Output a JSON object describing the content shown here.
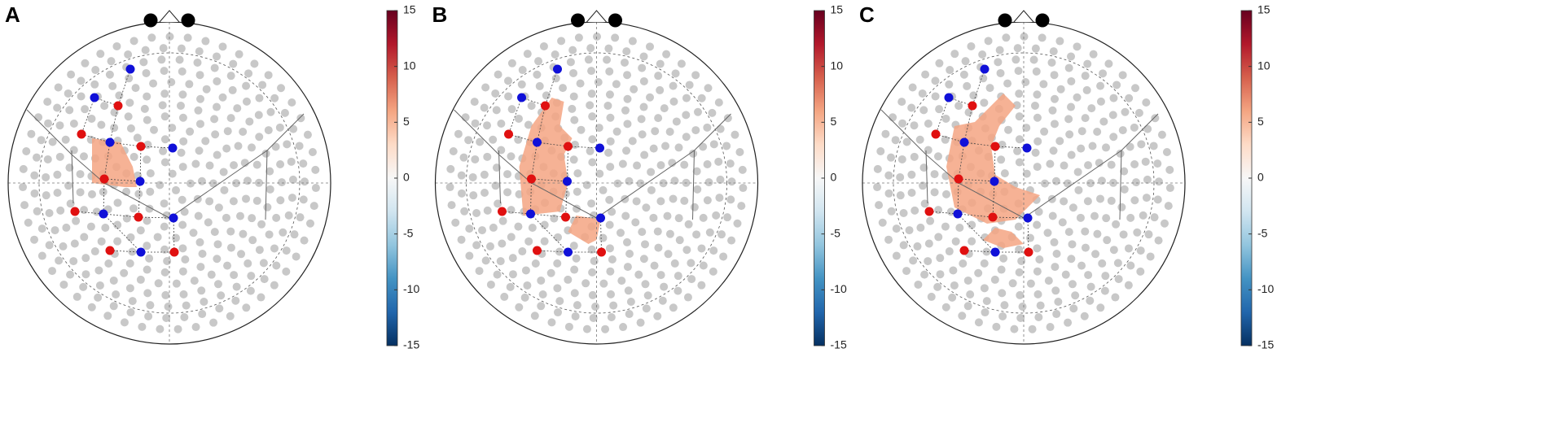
{
  "chart_data": [
    {
      "type": "topoplot",
      "label": "A",
      "clim": [
        -15,
        15
      ],
      "cticks": [
        -15,
        -10,
        -5,
        0,
        5,
        10,
        15
      ]
    },
    {
      "type": "topoplot",
      "label": "B",
      "clim": [
        -15,
        15
      ],
      "cticks": [
        -15,
        -10,
        -5,
        0,
        5,
        10,
        15
      ]
    },
    {
      "type": "topoplot",
      "label": "C",
      "clim": [
        -15,
        15
      ],
      "cticks": [
        -15,
        -10,
        -5,
        0,
        5,
        10,
        15
      ]
    }
  ]
}
